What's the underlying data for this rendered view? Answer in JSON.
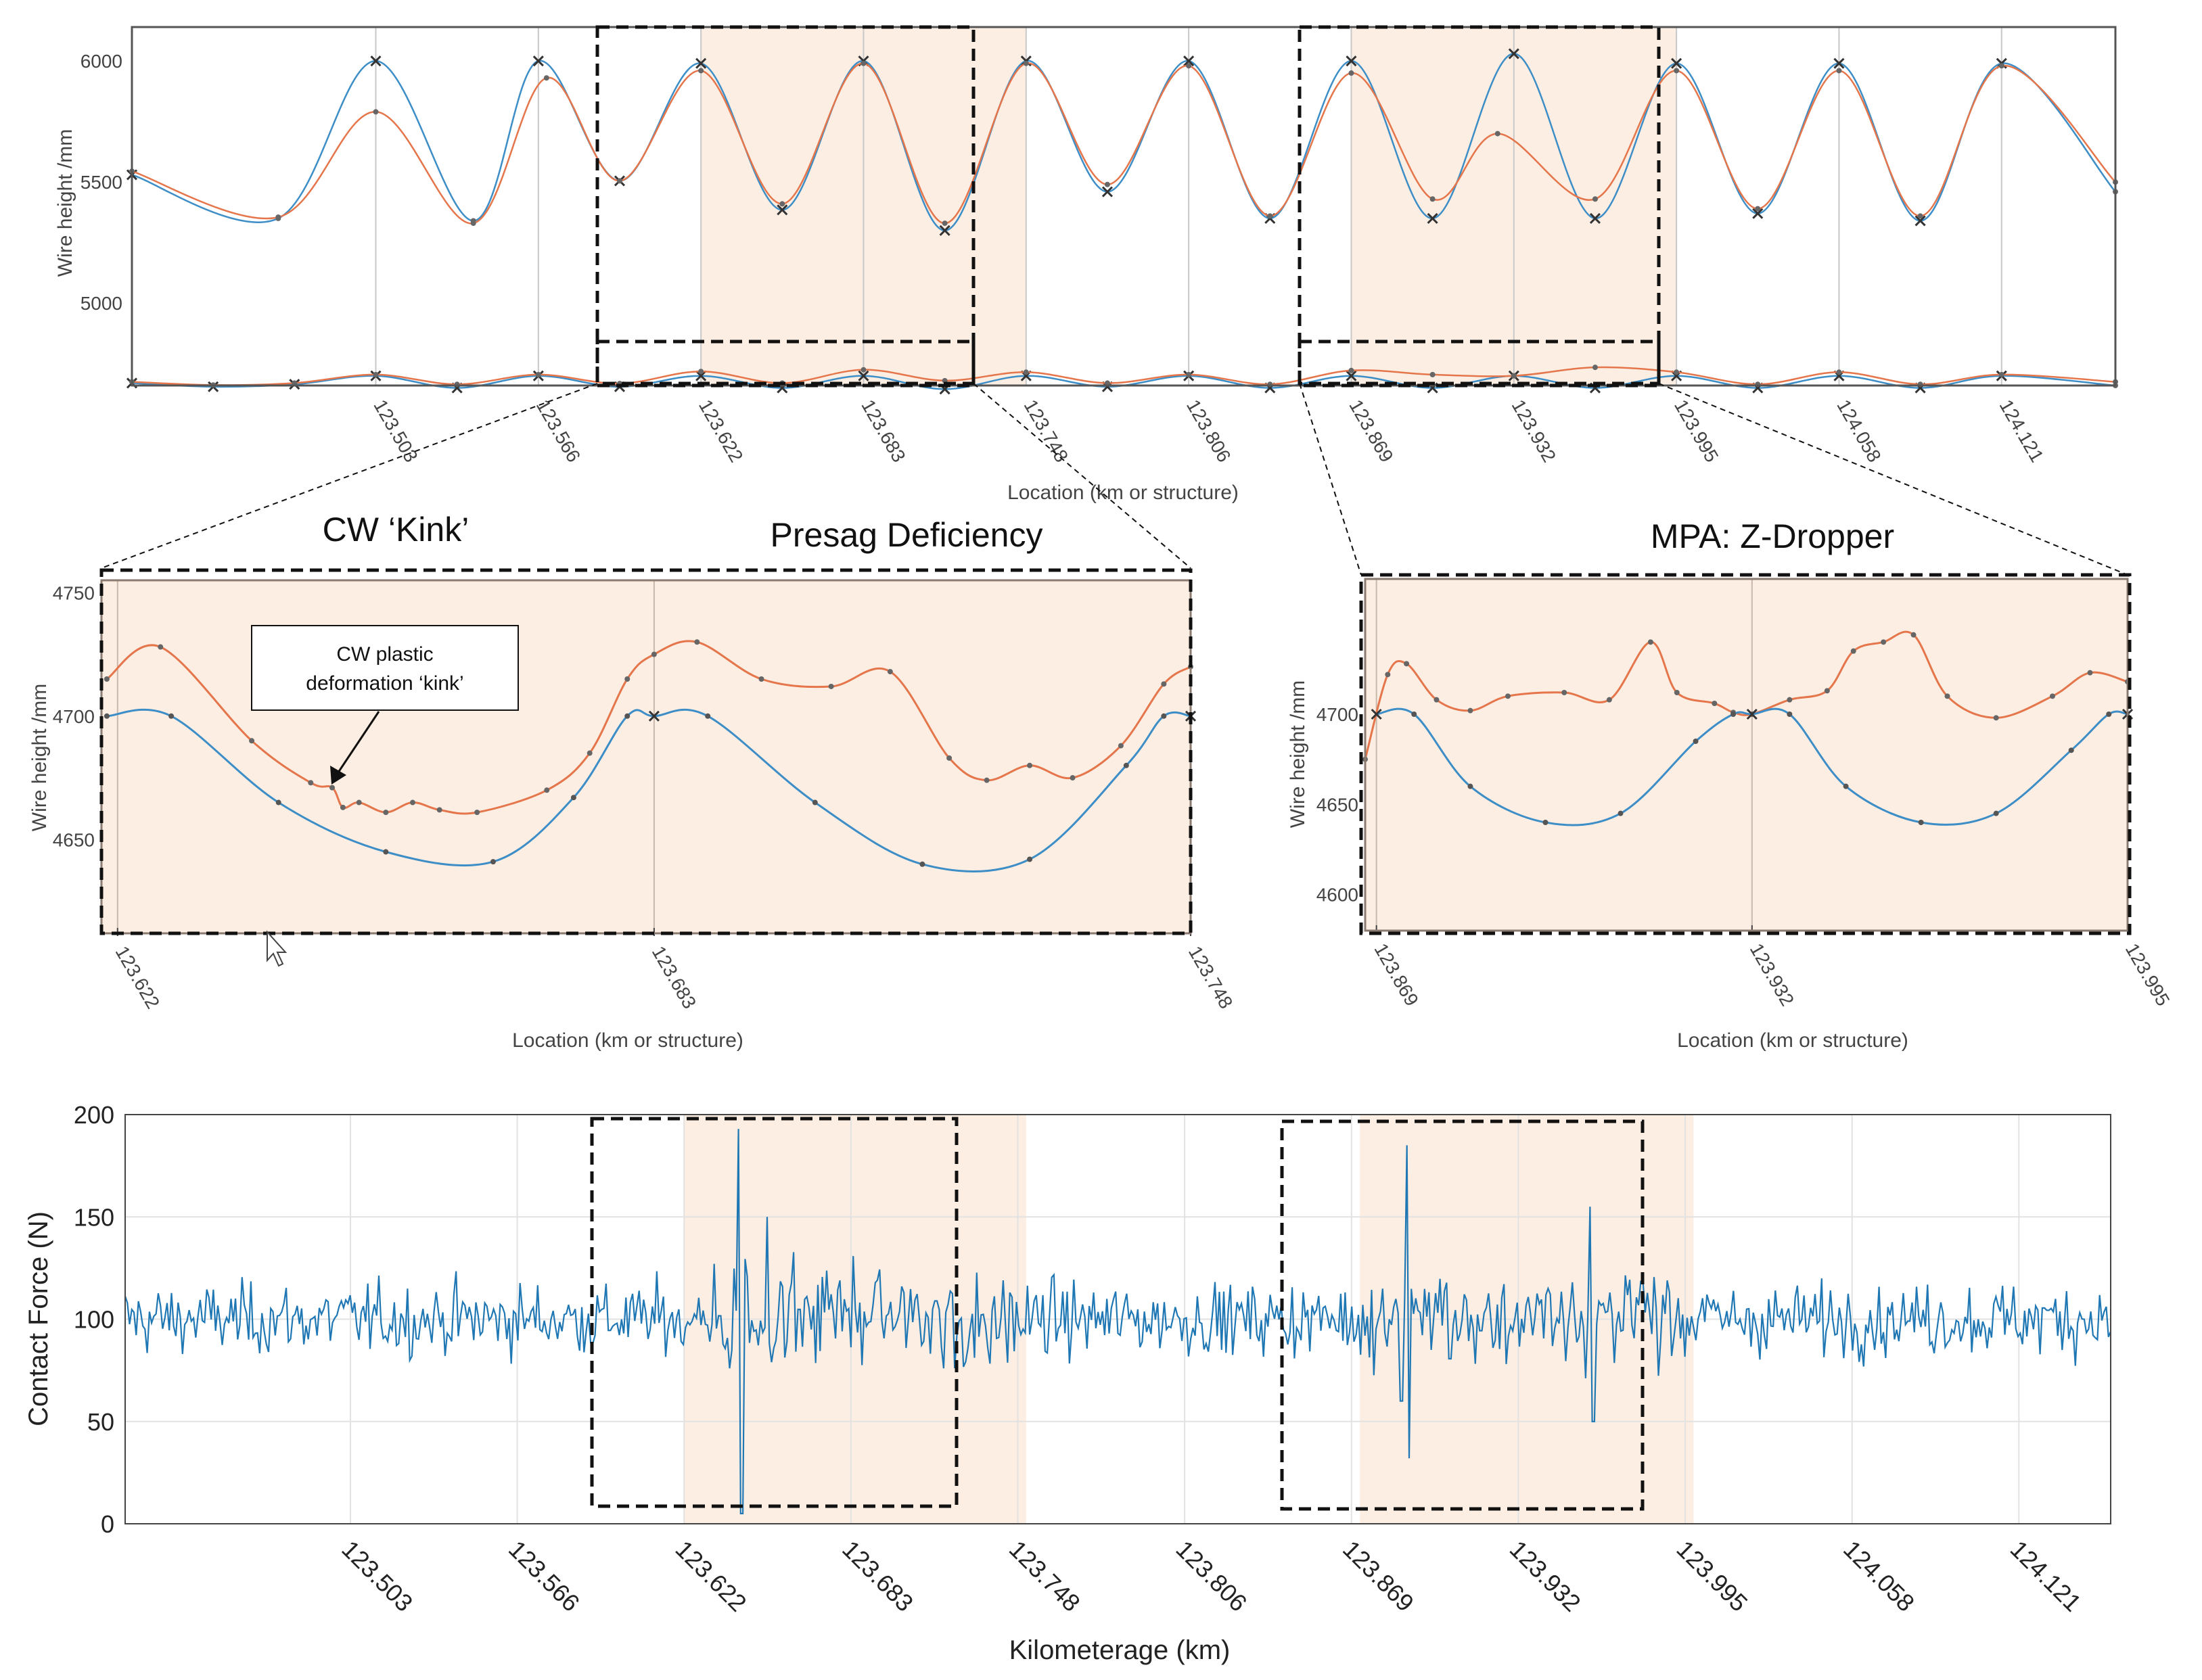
{
  "colors": {
    "blue": "#3d8ec7",
    "orange": "#e5754a",
    "highlight": "#fdeee3",
    "grid_light": "#e2e2e2",
    "grid_struct": "#c8c8c8",
    "axis": "#555555",
    "text": "#444444",
    "text_dark": "#111111"
  },
  "annotations": {
    "cw_kink_title": "CW ‘Kink’",
    "presag_title": "Presag Deficiency",
    "mpa_title": "MPA: Z-Dropper",
    "callout_line1": "CW plastic",
    "callout_line2": "deformation ‘kink’"
  },
  "chart_data": [
    {
      "id": "overview",
      "type": "line",
      "title": "",
      "xlabel": "Location (km or structure)",
      "ylabel": "Wire height /mm",
      "x_ticks": [
        "123.503",
        "123.566",
        "123.622",
        "123.683",
        "123.748",
        "123.806",
        "123.869",
        "123.932",
        "123.995",
        "124.058",
        "124.121"
      ],
      "x_tick_pos": [
        1.5,
        2.5,
        3.5,
        4.5,
        5.5,
        6.5,
        7.5,
        8.5,
        9.5,
        10.5,
        11.5
      ],
      "xlim": [
        0,
        12.2
      ],
      "ylim": [
        4660,
        6140
      ],
      "y_ticks": [
        6000,
        5500,
        5000
      ],
      "highlight_spans": [
        [
          3.5,
          5.5
        ],
        [
          7.5,
          9.5
        ]
      ],
      "catenary_blue": [
        {
          "x": 0,
          "y": 5530
        },
        {
          "x": 0.9,
          "y": 5350
        },
        {
          "x": 1.5,
          "y": 6000
        },
        {
          "x": 2.1,
          "y": 5340
        },
        {
          "x": 2.5,
          "y": 6000
        },
        {
          "x": 3.0,
          "y": 5505
        },
        {
          "x": 3.5,
          "y": 5990
        },
        {
          "x": 4.0,
          "y": 5385
        },
        {
          "x": 4.5,
          "y": 6000
        },
        {
          "x": 5.0,
          "y": 5300
        },
        {
          "x": 5.5,
          "y": 6000
        },
        {
          "x": 6.0,
          "y": 5460
        },
        {
          "x": 6.5,
          "y": 6000
        },
        {
          "x": 7.0,
          "y": 5350
        },
        {
          "x": 7.5,
          "y": 6000
        },
        {
          "x": 8.0,
          "y": 5350
        },
        {
          "x": 8.5,
          "y": 6030
        },
        {
          "x": 9.0,
          "y": 5350
        },
        {
          "x": 9.5,
          "y": 5990
        },
        {
          "x": 10.0,
          "y": 5370
        },
        {
          "x": 10.5,
          "y": 5990
        },
        {
          "x": 11.0,
          "y": 5340
        },
        {
          "x": 11.5,
          "y": 5990
        },
        {
          "x": 12.2,
          "y": 5460
        }
      ],
      "catenary_orange": [
        {
          "x": 0,
          "y": 5545
        },
        {
          "x": 0.9,
          "y": 5355
        },
        {
          "x": 1.5,
          "y": 5790
        },
        {
          "x": 2.1,
          "y": 5330
        },
        {
          "x": 2.55,
          "y": 5930
        },
        {
          "x": 3.0,
          "y": 5505
        },
        {
          "x": 3.5,
          "y": 5960
        },
        {
          "x": 4.0,
          "y": 5410
        },
        {
          "x": 4.5,
          "y": 5990
        },
        {
          "x": 5.0,
          "y": 5330
        },
        {
          "x": 5.5,
          "y": 5990
        },
        {
          "x": 6.0,
          "y": 5490
        },
        {
          "x": 6.5,
          "y": 5980
        },
        {
          "x": 7.0,
          "y": 5360
        },
        {
          "x": 7.5,
          "y": 5950
        },
        {
          "x": 8.0,
          "y": 5430
        },
        {
          "x": 8.4,
          "y": 5700
        },
        {
          "x": 9.0,
          "y": 5430
        },
        {
          "x": 9.5,
          "y": 5960
        },
        {
          "x": 10.0,
          "y": 5390
        },
        {
          "x": 10.5,
          "y": 5960
        },
        {
          "x": 11.0,
          "y": 5360
        },
        {
          "x": 11.5,
          "y": 5980
        },
        {
          "x": 12.2,
          "y": 5500
        }
      ],
      "contact_blue": [
        {
          "x": 0,
          "y": 4670
        },
        {
          "x": 0.5,
          "y": 4655
        },
        {
          "x": 1.0,
          "y": 4665
        },
        {
          "x": 1.5,
          "y": 4700
        },
        {
          "x": 2.0,
          "y": 4650
        },
        {
          "x": 2.5,
          "y": 4700
        },
        {
          "x": 3.0,
          "y": 4655
        },
        {
          "x": 3.5,
          "y": 4700
        },
        {
          "x": 4.0,
          "y": 4650
        },
        {
          "x": 4.5,
          "y": 4700
        },
        {
          "x": 5.0,
          "y": 4645
        },
        {
          "x": 5.5,
          "y": 4700
        },
        {
          "x": 6.0,
          "y": 4655
        },
        {
          "x": 6.5,
          "y": 4700
        },
        {
          "x": 7.0,
          "y": 4650
        },
        {
          "x": 7.5,
          "y": 4700
        },
        {
          "x": 8.0,
          "y": 4650
        },
        {
          "x": 8.5,
          "y": 4700
        },
        {
          "x": 9.0,
          "y": 4650
        },
        {
          "x": 9.5,
          "y": 4700
        },
        {
          "x": 10.0,
          "y": 4650
        },
        {
          "x": 10.5,
          "y": 4700
        },
        {
          "x": 11.0,
          "y": 4650
        },
        {
          "x": 11.5,
          "y": 4700
        },
        {
          "x": 12.2,
          "y": 4660
        }
      ],
      "contact_orange": [
        {
          "x": 0,
          "y": 4675
        },
        {
          "x": 0.5,
          "y": 4662
        },
        {
          "x": 1.0,
          "y": 4670
        },
        {
          "x": 1.5,
          "y": 4705
        },
        {
          "x": 2.0,
          "y": 4665
        },
        {
          "x": 2.5,
          "y": 4705
        },
        {
          "x": 3.0,
          "y": 4668
        },
        {
          "x": 3.5,
          "y": 4718
        },
        {
          "x": 4.0,
          "y": 4670
        },
        {
          "x": 4.5,
          "y": 4725
        },
        {
          "x": 5.0,
          "y": 4680
        },
        {
          "x": 5.5,
          "y": 4715
        },
        {
          "x": 6.0,
          "y": 4670
        },
        {
          "x": 6.5,
          "y": 4705
        },
        {
          "x": 7.0,
          "y": 4665
        },
        {
          "x": 7.5,
          "y": 4722
        },
        {
          "x": 8.0,
          "y": 4705
        },
        {
          "x": 8.5,
          "y": 4700
        },
        {
          "x": 9.0,
          "y": 4735
        },
        {
          "x": 9.5,
          "y": 4715
        },
        {
          "x": 10.0,
          "y": 4665
        },
        {
          "x": 10.5,
          "y": 4715
        },
        {
          "x": 11.0,
          "y": 4665
        },
        {
          "x": 11.5,
          "y": 4705
        },
        {
          "x": 12.2,
          "y": 4675
        }
      ]
    },
    {
      "id": "zoom_left",
      "type": "line",
      "title": "",
      "xlabel": "Location (km or structure)",
      "ylabel": "Wire height /mm",
      "x_ticks": [
        "123.622",
        "123.683",
        "123.748"
      ],
      "x_tick_pos": [
        0,
        1,
        2
      ],
      "xlim": [
        -0.03,
        2.0
      ],
      "ylim": [
        4612,
        4755
      ],
      "y_ticks": [
        4750,
        4700,
        4650
      ],
      "orange": [
        {
          "x": -0.02,
          "y": 4715
        },
        {
          "x": 0.08,
          "y": 4728
        },
        {
          "x": 0.25,
          "y": 4690
        },
        {
          "x": 0.36,
          "y": 4673
        },
        {
          "x": 0.4,
          "y": 4671
        },
        {
          "x": 0.42,
          "y": 4663
        },
        {
          "x": 0.45,
          "y": 4665
        },
        {
          "x": 0.5,
          "y": 4661
        },
        {
          "x": 0.55,
          "y": 4665
        },
        {
          "x": 0.6,
          "y": 4662
        },
        {
          "x": 0.67,
          "y": 4661
        },
        {
          "x": 0.8,
          "y": 4670
        },
        {
          "x": 0.88,
          "y": 4685
        },
        {
          "x": 0.95,
          "y": 4715
        },
        {
          "x": 1.0,
          "y": 4725
        },
        {
          "x": 1.08,
          "y": 4730
        },
        {
          "x": 1.2,
          "y": 4715
        },
        {
          "x": 1.33,
          "y": 4712
        },
        {
          "x": 1.44,
          "y": 4718
        },
        {
          "x": 1.55,
          "y": 4683
        },
        {
          "x": 1.62,
          "y": 4674
        },
        {
          "x": 1.7,
          "y": 4680
        },
        {
          "x": 1.78,
          "y": 4675
        },
        {
          "x": 1.87,
          "y": 4688
        },
        {
          "x": 1.95,
          "y": 4713
        },
        {
          "x": 2.0,
          "y": 4720
        }
      ],
      "blue": [
        {
          "x": -0.02,
          "y": 4700
        },
        {
          "x": 0.1,
          "y": 4700
        },
        {
          "x": 0.3,
          "y": 4665
        },
        {
          "x": 0.5,
          "y": 4645
        },
        {
          "x": 0.7,
          "y": 4641
        },
        {
          "x": 0.85,
          "y": 4667
        },
        {
          "x": 0.95,
          "y": 4700
        },
        {
          "x": 1.0,
          "y": 4700
        },
        {
          "x": 1.1,
          "y": 4700
        },
        {
          "x": 1.3,
          "y": 4665
        },
        {
          "x": 1.5,
          "y": 4640
        },
        {
          "x": 1.7,
          "y": 4642
        },
        {
          "x": 1.88,
          "y": 4680
        },
        {
          "x": 1.95,
          "y": 4700
        },
        {
          "x": 2.0,
          "y": 4700
        }
      ]
    },
    {
      "id": "zoom_right",
      "type": "line",
      "title": "",
      "xlabel": "Location (km or structure)",
      "ylabel": "Wire height /mm",
      "x_ticks": [
        "123.869",
        "123.932",
        "123.995"
      ],
      "x_tick_pos": [
        0,
        1,
        2
      ],
      "xlim": [
        -0.03,
        2.0
      ],
      "ylim": [
        4580,
        4775
      ],
      "y_ticks": [
        4700,
        4650,
        4600
      ],
      "orange": [
        {
          "x": -0.03,
          "y": 4675
        },
        {
          "x": 0.03,
          "y": 4722
        },
        {
          "x": 0.08,
          "y": 4728
        },
        {
          "x": 0.16,
          "y": 4708
        },
        {
          "x": 0.25,
          "y": 4702
        },
        {
          "x": 0.35,
          "y": 4710
        },
        {
          "x": 0.5,
          "y": 4712
        },
        {
          "x": 0.62,
          "y": 4708
        },
        {
          "x": 0.73,
          "y": 4740
        },
        {
          "x": 0.8,
          "y": 4712
        },
        {
          "x": 0.9,
          "y": 4706
        },
        {
          "x": 0.95,
          "y": 4701
        },
        {
          "x": 1.0,
          "y": 4700
        },
        {
          "x": 1.1,
          "y": 4708
        },
        {
          "x": 1.2,
          "y": 4713
        },
        {
          "x": 1.27,
          "y": 4735
        },
        {
          "x": 1.35,
          "y": 4740
        },
        {
          "x": 1.43,
          "y": 4744
        },
        {
          "x": 1.52,
          "y": 4710
        },
        {
          "x": 1.65,
          "y": 4698
        },
        {
          "x": 1.8,
          "y": 4710
        },
        {
          "x": 1.9,
          "y": 4723
        },
        {
          "x": 2.0,
          "y": 4718
        }
      ],
      "blue": [
        {
          "x": 0.0,
          "y": 4700
        },
        {
          "x": 0.1,
          "y": 4700
        },
        {
          "x": 0.25,
          "y": 4660
        },
        {
          "x": 0.45,
          "y": 4640
        },
        {
          "x": 0.65,
          "y": 4645
        },
        {
          "x": 0.85,
          "y": 4685
        },
        {
          "x": 0.95,
          "y": 4700
        },
        {
          "x": 1.0,
          "y": 4700
        },
        {
          "x": 1.1,
          "y": 4700
        },
        {
          "x": 1.25,
          "y": 4660
        },
        {
          "x": 1.45,
          "y": 4640
        },
        {
          "x": 1.65,
          "y": 4645
        },
        {
          "x": 1.85,
          "y": 4680
        },
        {
          "x": 1.95,
          "y": 4700
        },
        {
          "x": 2.0,
          "y": 4700
        }
      ]
    },
    {
      "id": "contact_force",
      "type": "line",
      "title": "",
      "xlabel": "Kilometerage (km)",
      "ylabel": "Contact Force (N)",
      "x_ticks": [
        "123.503",
        "123.566",
        "123.622",
        "123.683",
        "123.748",
        "123.806",
        "123.869",
        "123.932",
        "123.995",
        "124.058",
        "124.121"
      ],
      "x_tick_pos": [
        1.5,
        2.5,
        3.5,
        4.5,
        5.5,
        6.5,
        7.5,
        8.5,
        9.5,
        10.5,
        11.5
      ],
      "xlim": [
        0.15,
        12.05
      ],
      "ylim": [
        0,
        200
      ],
      "y_ticks": [
        0,
        50,
        100,
        150,
        200
      ],
      "highlight_spans": [
        [
          3.5,
          5.55
        ],
        [
          7.55,
          9.55
        ]
      ],
      "series_name": "Contact Force",
      "baseline_mean": 100,
      "baseline_std": 12,
      "spikes": [
        {
          "x": 3.83,
          "y": 193
        },
        {
          "x": 3.845,
          "y": 5
        },
        {
          "x": 7.83,
          "y": 185
        },
        {
          "x": 7.845,
          "y": 32
        },
        {
          "x": 7.8,
          "y": 60
        },
        {
          "x": 8.93,
          "y": 155
        },
        {
          "x": 8.95,
          "y": 50
        },
        {
          "x": 4.0,
          "y": 150
        }
      ]
    }
  ]
}
